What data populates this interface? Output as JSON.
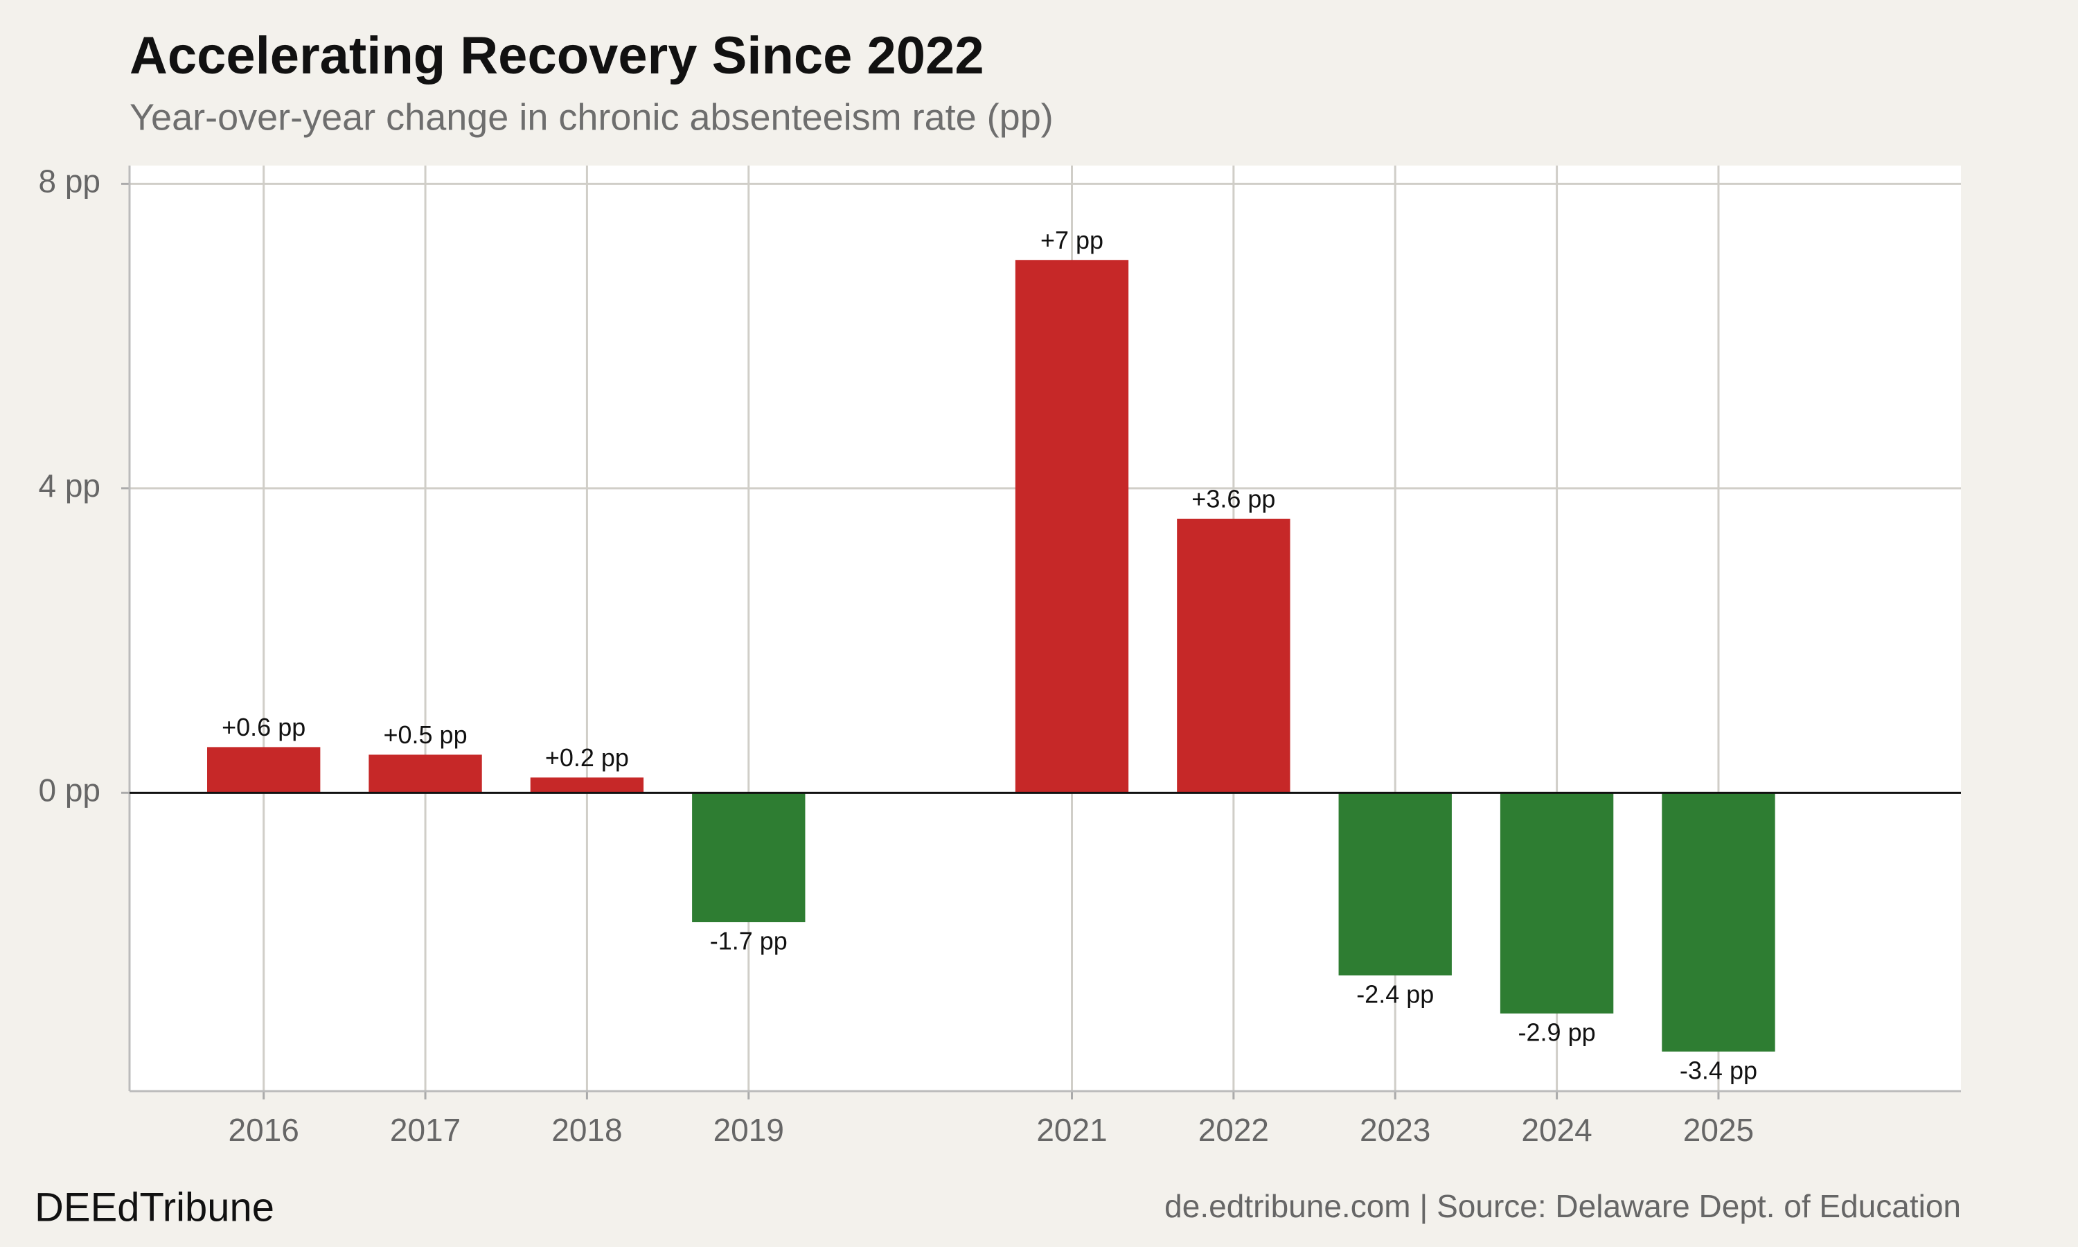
{
  "chart_data": {
    "type": "bar",
    "title": "Accelerating Recovery Since 2022",
    "subtitle": "Year-over-year change in chronic absenteeism rate (pp)",
    "x": [
      2016,
      2017,
      2018,
      2019,
      2021,
      2022,
      2023,
      2024,
      2025
    ],
    "values": [
      0.6,
      0.5,
      0.2,
      -1.7,
      7,
      3.6,
      -2.4,
      -2.9,
      -3.4
    ],
    "value_labels": [
      "+0.6 pp",
      "+0.5 pp",
      "+0.2 pp",
      "-1.7 pp",
      "+7 pp",
      "+3.6 pp",
      "-2.4 pp",
      "-2.9 pp",
      "-3.4 pp"
    ],
    "positive_color": "#c62828",
    "negative_color": "#2e7d32",
    "xlim": [
      2015.17,
      2026.5
    ],
    "xticks": [
      2016,
      2017,
      2018,
      2019,
      2021,
      2022,
      2023,
      2024,
      2025
    ],
    "ylim": [
      -3.92,
      8.24
    ],
    "yticks": [
      {
        "value": 0,
        "label": "0 pp"
      },
      {
        "value": 4,
        "label": "4 pp"
      },
      {
        "value": 8,
        "label": "8 pp"
      }
    ],
    "grid": true,
    "brand": "DEEdTribune",
    "source": "de.edtribune.com | Source: Delaware Dept. of Education"
  }
}
